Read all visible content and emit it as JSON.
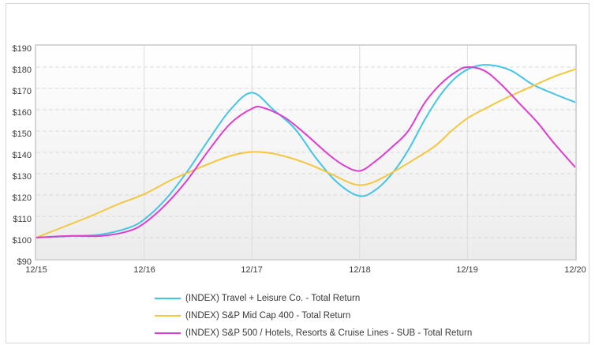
{
  "chart_data": {
    "type": "line",
    "title": "",
    "xlabel": "",
    "ylabel": "",
    "grid": {
      "horizontal": "dashed",
      "vertical": "solid"
    },
    "legend_position": "bottom",
    "x_axis": {
      "range": [
        0,
        5
      ],
      "ticks": [
        "12/15",
        "12/16",
        "12/17",
        "12/18",
        "12/19",
        "12/20"
      ]
    },
    "y_axis": {
      "range": [
        90,
        190
      ],
      "step": 10,
      "ticks": [
        "$190",
        "$180",
        "$170",
        "$160",
        "$150",
        "$140",
        "$130",
        "$120",
        "$110",
        "$100",
        "$90"
      ]
    },
    "series": [
      {
        "name": "(INDEX) Travel + Leisure Co. - Total Return",
        "color": "#45C5E6",
        "points": [
          [
            0,
            100
          ],
          [
            0.3,
            100.7
          ],
          [
            0.6,
            101.5
          ],
          [
            0.85,
            104.5
          ],
          [
            1,
            108.5
          ],
          [
            1.2,
            118
          ],
          [
            1.4,
            131
          ],
          [
            1.6,
            146
          ],
          [
            1.8,
            160
          ],
          [
            2,
            168
          ],
          [
            2.2,
            160
          ],
          [
            2.4,
            151
          ],
          [
            2.6,
            137
          ],
          [
            2.8,
            125.5
          ],
          [
            3,
            119.5
          ],
          [
            3.15,
            122.5
          ],
          [
            3.3,
            130
          ],
          [
            3.45,
            141
          ],
          [
            3.6,
            155
          ],
          [
            3.75,
            167
          ],
          [
            3.9,
            175.5
          ],
          [
            4.05,
            180
          ],
          [
            4.2,
            181
          ],
          [
            4.4,
            178.5
          ],
          [
            4.6,
            172
          ],
          [
            4.8,
            167.5
          ],
          [
            5,
            163.5
          ]
        ]
      },
      {
        "name": "(INDEX) S&P Mid Cap 400 - Total Return",
        "color": "#F3C73F",
        "points": [
          [
            0,
            100
          ],
          [
            0.25,
            105
          ],
          [
            0.5,
            110
          ],
          [
            0.75,
            115.5
          ],
          [
            1,
            120.4
          ],
          [
            1.25,
            127
          ],
          [
            1.5,
            132.5
          ],
          [
            1.75,
            137.5
          ],
          [
            1.95,
            140
          ],
          [
            2.15,
            139.8
          ],
          [
            2.35,
            137.5
          ],
          [
            2.55,
            134
          ],
          [
            2.75,
            129.5
          ],
          [
            2.95,
            125
          ],
          [
            3.1,
            125.5
          ],
          [
            3.3,
            130.5
          ],
          [
            3.5,
            136.5
          ],
          [
            3.7,
            143
          ],
          [
            3.85,
            150
          ],
          [
            4,
            156
          ],
          [
            4.2,
            161.5
          ],
          [
            4.4,
            166.5
          ],
          [
            4.6,
            171
          ],
          [
            4.8,
            175.5
          ],
          [
            5,
            179
          ]
        ]
      },
      {
        "name": "(INDEX) S&P 500 / Hotels, Resorts & Cruise Lines - SUB - Total Return",
        "color": "#DE3DD0",
        "points": [
          [
            0,
            100
          ],
          [
            0.3,
            100.8
          ],
          [
            0.6,
            100.8
          ],
          [
            0.85,
            103
          ],
          [
            1,
            106.7
          ],
          [
            1.2,
            115.5
          ],
          [
            1.4,
            127
          ],
          [
            1.6,
            141
          ],
          [
            1.8,
            153.5
          ],
          [
            2,
            160.5
          ],
          [
            2.1,
            161
          ],
          [
            2.3,
            156.5
          ],
          [
            2.5,
            148.5
          ],
          [
            2.7,
            139.5
          ],
          [
            2.85,
            134
          ],
          [
            3,
            131.3
          ],
          [
            3.15,
            136
          ],
          [
            3.3,
            142.5
          ],
          [
            3.45,
            150
          ],
          [
            3.6,
            163
          ],
          [
            3.75,
            172
          ],
          [
            3.9,
            178
          ],
          [
            4,
            180
          ],
          [
            4.15,
            178.5
          ],
          [
            4.3,
            172.5
          ],
          [
            4.5,
            162
          ],
          [
            4.65,
            154
          ],
          [
            4.8,
            144.5
          ],
          [
            5,
            133
          ]
        ]
      }
    ]
  }
}
